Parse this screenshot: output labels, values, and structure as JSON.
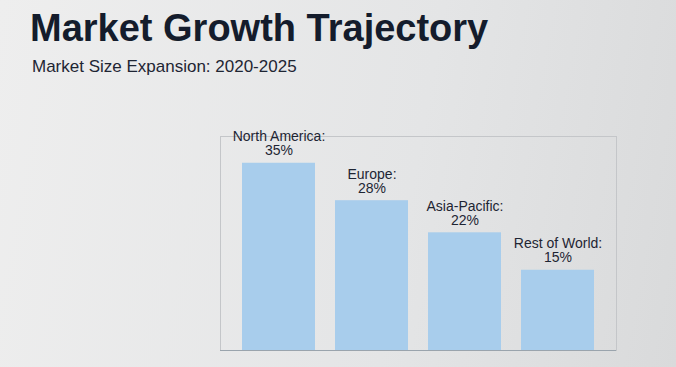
{
  "chart_data": {
    "type": "bar",
    "title": "Market Growth Trajectory",
    "subtitle": "Market Size Expansion: 2020-2025",
    "categories": [
      "North America:",
      "Europe:",
      "Asia-Pacific:",
      "Rest of World:"
    ],
    "values": [
      35,
      28,
      22,
      15
    ],
    "value_labels": [
      "35%",
      "28%",
      "22%",
      "15%"
    ],
    "data_labels": true,
    "tick_labels": false,
    "color": "#a8cdec",
    "ylim": [
      0,
      40
    ]
  }
}
